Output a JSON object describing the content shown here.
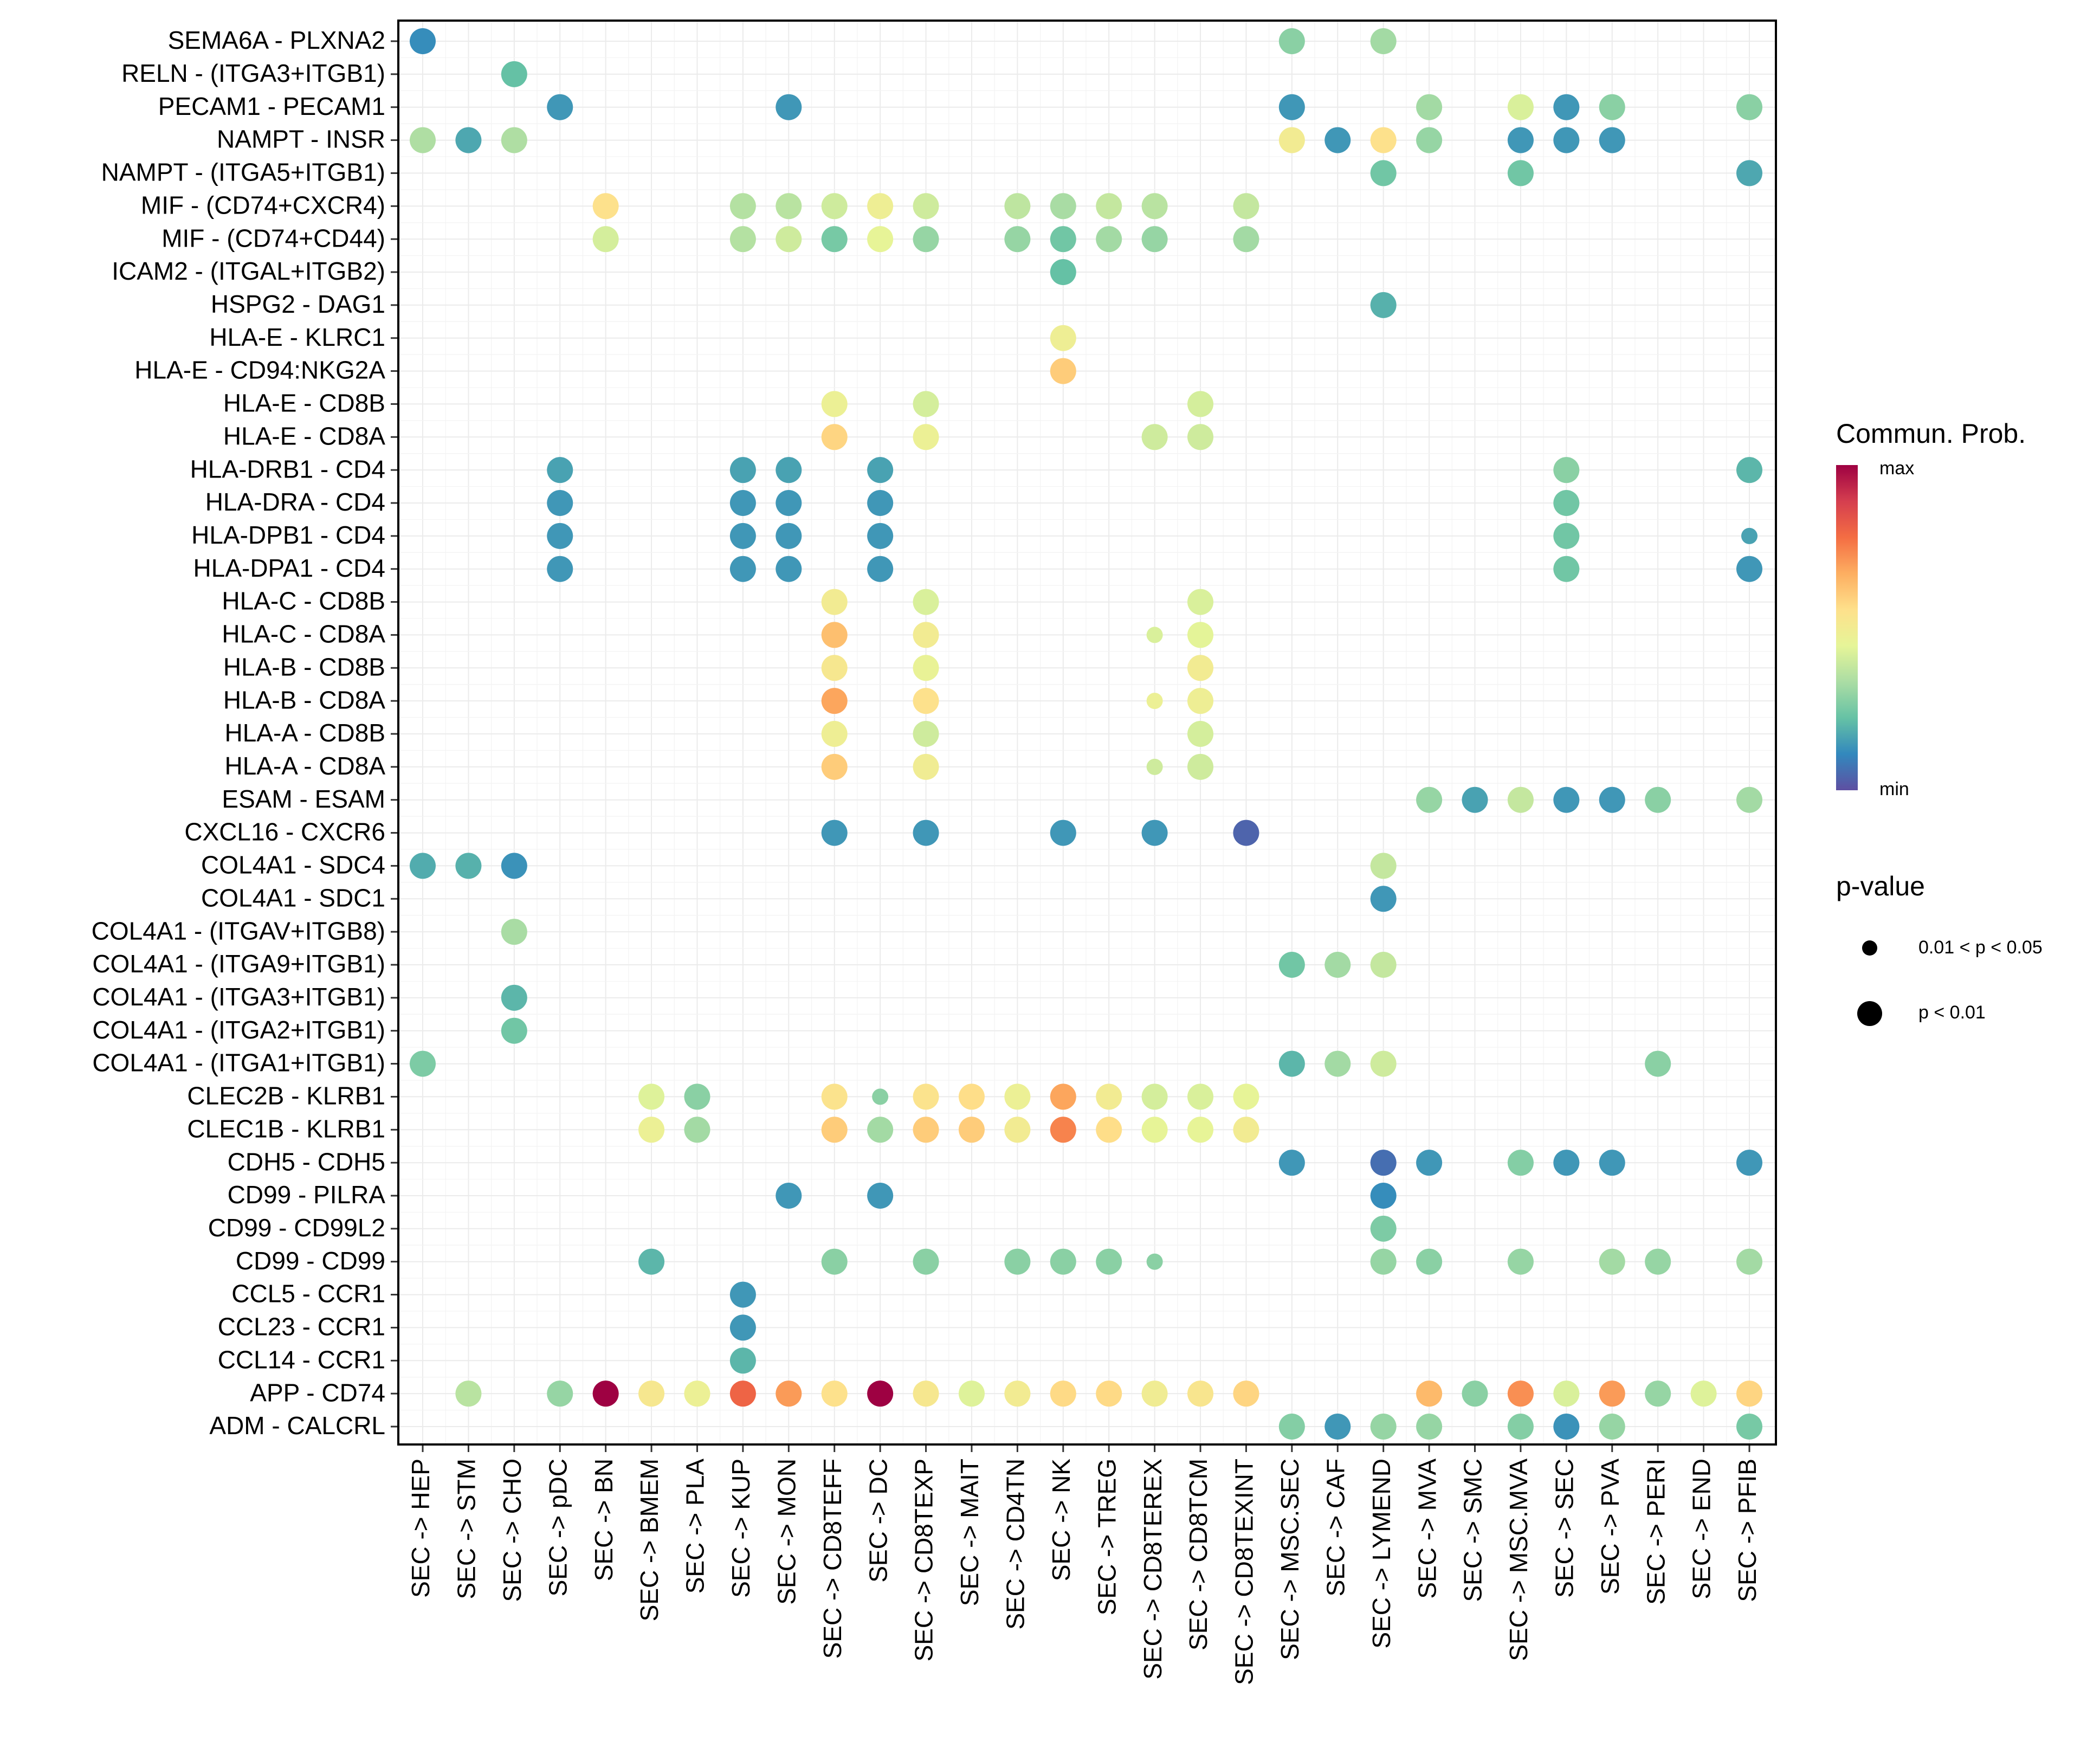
{
  "chart_data": {
    "type": "scatter",
    "subtype": "dot-matrix",
    "title": "",
    "xlabel": "",
    "ylabel": "",
    "grid": true,
    "x_categories": [
      "SEC -> HEP",
      "SEC -> STM",
      "SEC -> CHO",
      "SEC -> pDC",
      "SEC -> BN",
      "SEC -> BMEM",
      "SEC -> PLA",
      "SEC -> KUP",
      "SEC -> MON",
      "SEC -> CD8TEFF",
      "SEC -> DC",
      "SEC -> CD8TEXP",
      "SEC -> MAIT",
      "SEC -> CD4TN",
      "SEC -> NK",
      "SEC -> TREG",
      "SEC -> CD8TEREX",
      "SEC -> CD8TCM",
      "SEC -> CD8TEXINT",
      "SEC -> MSC.SEC",
      "SEC -> CAF",
      "SEC -> LYMEND",
      "SEC -> MVA",
      "SEC -> SMC",
      "SEC -> MSC.MVA",
      "SEC -> SEC",
      "SEC -> PVA",
      "SEC -> PERI",
      "SEC -> END",
      "SEC -> PFIB"
    ],
    "y_categories": [
      "SEMA6A - PLXNA2",
      "RELN - (ITGA3+ITGB1)",
      "PECAM1 - PECAM1",
      "NAMPT - INSR",
      "NAMPT - (ITGA5+ITGB1)",
      "MIF - (CD74+CXCR4)",
      "MIF - (CD74+CD44)",
      "ICAM2 - (ITGAL+ITGB2)",
      "HSPG2 - DAG1",
      "HLA-E - KLRC1",
      "HLA-E - CD94:NKG2A",
      "HLA-E - CD8B",
      "HLA-E - CD8A",
      "HLA-DRB1 - CD4",
      "HLA-DRA - CD4",
      "HLA-DPB1 - CD4",
      "HLA-DPA1 - CD4",
      "HLA-C - CD8B",
      "HLA-C - CD8A",
      "HLA-B - CD8B",
      "HLA-B - CD8A",
      "HLA-A - CD8B",
      "HLA-A - CD8A",
      "ESAM - ESAM",
      "CXCL16 - CXCR6",
      "COL4A1 - SDC4",
      "COL4A1 - SDC1",
      "COL4A1 - (ITGAV+ITGB8)",
      "COL4A1 - (ITGA9+ITGB1)",
      "COL4A1 - (ITGA3+ITGB1)",
      "COL4A1 - (ITGA2+ITGB1)",
      "COL4A1 - (ITGA1+ITGB1)",
      "CLEC2B - KLRB1",
      "CLEC1B - KLRB1",
      "CDH5 - CDH5",
      "CD99 - PILRA",
      "CD99 - CD99L2",
      "CD99 - CD99",
      "CCL5 - CCR1",
      "CCL23 - CCR1",
      "CCL14 - CCR1",
      "APP - CD74",
      "ADM - CALCRL"
    ],
    "value_note": "points: [x_index, y_index, commun_prob_scaled (0=min,1=max), pvalue_class ('p<0.01' or '0.01<p<0.05')]",
    "points": [
      [
        0,
        0,
        0.12,
        "p<0.01"
      ],
      [
        19,
        0,
        0.28,
        "p<0.01"
      ],
      [
        21,
        0,
        0.32,
        "p<0.01"
      ],
      [
        2,
        1,
        0.22,
        "p<0.01"
      ],
      [
        3,
        2,
        0.14,
        "p<0.01"
      ],
      [
        8,
        2,
        0.14,
        "p<0.01"
      ],
      [
        19,
        2,
        0.14,
        "p<0.01"
      ],
      [
        22,
        2,
        0.32,
        "p<0.01"
      ],
      [
        24,
        2,
        0.42,
        "p<0.01"
      ],
      [
        25,
        2,
        0.14,
        "p<0.01"
      ],
      [
        26,
        2,
        0.28,
        "p<0.01"
      ],
      [
        29,
        2,
        0.28,
        "p<0.01"
      ],
      [
        0,
        3,
        0.34,
        "p<0.01"
      ],
      [
        1,
        3,
        0.17,
        "p<0.01"
      ],
      [
        2,
        3,
        0.34,
        "p<0.01"
      ],
      [
        19,
        3,
        0.5,
        "p<0.01"
      ],
      [
        20,
        3,
        0.14,
        "p<0.01"
      ],
      [
        21,
        3,
        0.55,
        "p<0.01"
      ],
      [
        22,
        3,
        0.3,
        "p<0.01"
      ],
      [
        24,
        3,
        0.14,
        "p<0.01"
      ],
      [
        25,
        3,
        0.14,
        "p<0.01"
      ],
      [
        26,
        3,
        0.14,
        "p<0.01"
      ],
      [
        21,
        4,
        0.24,
        "p<0.01"
      ],
      [
        24,
        4,
        0.24,
        "p<0.01"
      ],
      [
        29,
        4,
        0.17,
        "p<0.01"
      ],
      [
        4,
        5,
        0.55,
        "p<0.01"
      ],
      [
        7,
        5,
        0.35,
        "p<0.01"
      ],
      [
        8,
        5,
        0.36,
        "p<0.01"
      ],
      [
        9,
        5,
        0.4,
        "p<0.01"
      ],
      [
        10,
        5,
        0.48,
        "p<0.01"
      ],
      [
        11,
        5,
        0.4,
        "p<0.01"
      ],
      [
        13,
        5,
        0.37,
        "p<0.01"
      ],
      [
        14,
        5,
        0.33,
        "p<0.01"
      ],
      [
        15,
        5,
        0.38,
        "p<0.01"
      ],
      [
        16,
        5,
        0.36,
        "p<0.01"
      ],
      [
        18,
        5,
        0.38,
        "p<0.01"
      ],
      [
        4,
        6,
        0.41,
        "p<0.01"
      ],
      [
        7,
        6,
        0.35,
        "p<0.01"
      ],
      [
        8,
        6,
        0.4,
        "p<0.01"
      ],
      [
        9,
        6,
        0.25,
        "p<0.01"
      ],
      [
        10,
        6,
        0.45,
        "p<0.01"
      ],
      [
        11,
        6,
        0.3,
        "p<0.01"
      ],
      [
        13,
        6,
        0.3,
        "p<0.01"
      ],
      [
        14,
        6,
        0.24,
        "p<0.01"
      ],
      [
        15,
        6,
        0.32,
        "p<0.01"
      ],
      [
        16,
        6,
        0.3,
        "p<0.01"
      ],
      [
        18,
        6,
        0.32,
        "p<0.01"
      ],
      [
        14,
        7,
        0.22,
        "p<0.01"
      ],
      [
        21,
        8,
        0.19,
        "p<0.01"
      ],
      [
        14,
        9,
        0.48,
        "p<0.01"
      ],
      [
        14,
        10,
        0.6,
        "p<0.01"
      ],
      [
        9,
        11,
        0.47,
        "p<0.01"
      ],
      [
        11,
        11,
        0.41,
        "p<0.01"
      ],
      [
        17,
        11,
        0.41,
        "p<0.01"
      ],
      [
        9,
        12,
        0.58,
        "p<0.01"
      ],
      [
        11,
        12,
        0.47,
        "p<0.01"
      ],
      [
        16,
        12,
        0.4,
        "p<0.01"
      ],
      [
        17,
        12,
        0.4,
        "p<0.01"
      ],
      [
        3,
        13,
        0.16,
        "p<0.01"
      ],
      [
        7,
        13,
        0.16,
        "p<0.01"
      ],
      [
        8,
        13,
        0.16,
        "p<0.01"
      ],
      [
        10,
        13,
        0.16,
        "p<0.01"
      ],
      [
        25,
        13,
        0.28,
        "p<0.01"
      ],
      [
        29,
        13,
        0.2,
        "p<0.01"
      ],
      [
        3,
        14,
        0.14,
        "p<0.01"
      ],
      [
        7,
        14,
        0.14,
        "p<0.01"
      ],
      [
        8,
        14,
        0.14,
        "p<0.01"
      ],
      [
        10,
        14,
        0.14,
        "p<0.01"
      ],
      [
        25,
        14,
        0.24,
        "p<0.01"
      ],
      [
        3,
        15,
        0.14,
        "p<0.01"
      ],
      [
        7,
        15,
        0.14,
        "p<0.01"
      ],
      [
        8,
        15,
        0.14,
        "p<0.01"
      ],
      [
        10,
        15,
        0.14,
        "p<0.01"
      ],
      [
        25,
        15,
        0.24,
        "p<0.01"
      ],
      [
        29,
        15,
        0.16,
        "0.01<p<0.05"
      ],
      [
        3,
        16,
        0.14,
        "p<0.01"
      ],
      [
        7,
        16,
        0.14,
        "p<0.01"
      ],
      [
        8,
        16,
        0.14,
        "p<0.01"
      ],
      [
        10,
        16,
        0.14,
        "p<0.01"
      ],
      [
        25,
        16,
        0.24,
        "p<0.01"
      ],
      [
        29,
        16,
        0.14,
        "p<0.01"
      ],
      [
        9,
        17,
        0.5,
        "p<0.01"
      ],
      [
        11,
        17,
        0.42,
        "p<0.01"
      ],
      [
        17,
        17,
        0.42,
        "p<0.01"
      ],
      [
        9,
        18,
        0.63,
        "p<0.01"
      ],
      [
        11,
        18,
        0.5,
        "p<0.01"
      ],
      [
        16,
        18,
        0.42,
        "0.01<p<0.05"
      ],
      [
        17,
        18,
        0.44,
        "p<0.01"
      ],
      [
        9,
        19,
        0.52,
        "p<0.01"
      ],
      [
        11,
        19,
        0.46,
        "p<0.01"
      ],
      [
        17,
        19,
        0.5,
        "p<0.01"
      ],
      [
        9,
        20,
        0.68,
        "p<0.01"
      ],
      [
        11,
        20,
        0.55,
        "p<0.01"
      ],
      [
        16,
        20,
        0.47,
        "0.01<p<0.05"
      ],
      [
        17,
        20,
        0.48,
        "p<0.01"
      ],
      [
        9,
        21,
        0.48,
        "p<0.01"
      ],
      [
        11,
        21,
        0.4,
        "p<0.01"
      ],
      [
        17,
        21,
        0.41,
        "p<0.01"
      ],
      [
        9,
        22,
        0.6,
        "p<0.01"
      ],
      [
        11,
        22,
        0.49,
        "p<0.01"
      ],
      [
        16,
        22,
        0.4,
        "0.01<p<0.05"
      ],
      [
        17,
        22,
        0.4,
        "p<0.01"
      ],
      [
        22,
        23,
        0.3,
        "p<0.01"
      ],
      [
        23,
        23,
        0.16,
        "p<0.01"
      ],
      [
        24,
        23,
        0.38,
        "p<0.01"
      ],
      [
        25,
        23,
        0.14,
        "p<0.01"
      ],
      [
        26,
        23,
        0.14,
        "p<0.01"
      ],
      [
        27,
        23,
        0.28,
        "p<0.01"
      ],
      [
        29,
        23,
        0.32,
        "p<0.01"
      ],
      [
        9,
        24,
        0.14,
        "p<0.01"
      ],
      [
        11,
        24,
        0.14,
        "p<0.01"
      ],
      [
        14,
        24,
        0.14,
        "p<0.01"
      ],
      [
        16,
        24,
        0.14,
        "p<0.01"
      ],
      [
        18,
        24,
        0.04,
        "p<0.01"
      ],
      [
        0,
        25,
        0.18,
        "p<0.01"
      ],
      [
        1,
        25,
        0.19,
        "p<0.01"
      ],
      [
        2,
        25,
        0.13,
        "p<0.01"
      ],
      [
        21,
        25,
        0.38,
        "p<0.01"
      ],
      [
        21,
        26,
        0.14,
        "p<0.01"
      ],
      [
        2,
        27,
        0.33,
        "p<0.01"
      ],
      [
        19,
        28,
        0.24,
        "p<0.01"
      ],
      [
        20,
        28,
        0.32,
        "p<0.01"
      ],
      [
        21,
        28,
        0.38,
        "p<0.01"
      ],
      [
        2,
        29,
        0.2,
        "p<0.01"
      ],
      [
        2,
        30,
        0.24,
        "p<0.01"
      ],
      [
        0,
        31,
        0.26,
        "p<0.01"
      ],
      [
        19,
        31,
        0.2,
        "p<0.01"
      ],
      [
        20,
        31,
        0.32,
        "p<0.01"
      ],
      [
        21,
        31,
        0.4,
        "p<0.01"
      ],
      [
        27,
        31,
        0.28,
        "p<0.01"
      ],
      [
        5,
        32,
        0.43,
        "p<0.01"
      ],
      [
        6,
        32,
        0.28,
        "p<0.01"
      ],
      [
        9,
        32,
        0.54,
        "p<0.01"
      ],
      [
        10,
        32,
        0.28,
        "0.01<p<0.05"
      ],
      [
        11,
        32,
        0.54,
        "p<0.01"
      ],
      [
        12,
        32,
        0.56,
        "p<0.01"
      ],
      [
        13,
        32,
        0.47,
        "p<0.01"
      ],
      [
        14,
        32,
        0.68,
        "p<0.01"
      ],
      [
        15,
        32,
        0.5,
        "p<0.01"
      ],
      [
        16,
        32,
        0.41,
        "p<0.01"
      ],
      [
        17,
        32,
        0.42,
        "p<0.01"
      ],
      [
        18,
        32,
        0.45,
        "p<0.01"
      ],
      [
        5,
        33,
        0.47,
        "p<0.01"
      ],
      [
        6,
        33,
        0.32,
        "p<0.01"
      ],
      [
        9,
        33,
        0.6,
        "p<0.01"
      ],
      [
        10,
        33,
        0.32,
        "p<0.01"
      ],
      [
        11,
        33,
        0.6,
        "p<0.01"
      ],
      [
        12,
        33,
        0.6,
        "p<0.01"
      ],
      [
        13,
        33,
        0.5,
        "p<0.01"
      ],
      [
        14,
        33,
        0.74,
        "p<0.01"
      ],
      [
        15,
        33,
        0.56,
        "p<0.01"
      ],
      [
        16,
        33,
        0.45,
        "p<0.01"
      ],
      [
        17,
        33,
        0.45,
        "p<0.01"
      ],
      [
        18,
        33,
        0.5,
        "p<0.01"
      ],
      [
        19,
        34,
        0.14,
        "p<0.01"
      ],
      [
        21,
        34,
        0.06,
        "p<0.01"
      ],
      [
        22,
        34,
        0.14,
        "p<0.01"
      ],
      [
        24,
        34,
        0.27,
        "p<0.01"
      ],
      [
        25,
        34,
        0.14,
        "p<0.01"
      ],
      [
        26,
        34,
        0.14,
        "p<0.01"
      ],
      [
        29,
        34,
        0.14,
        "p<0.01"
      ],
      [
        8,
        35,
        0.14,
        "p<0.01"
      ],
      [
        10,
        35,
        0.14,
        "p<0.01"
      ],
      [
        21,
        35,
        0.12,
        "p<0.01"
      ],
      [
        21,
        36,
        0.26,
        "p<0.01"
      ],
      [
        5,
        37,
        0.2,
        "p<0.01"
      ],
      [
        9,
        37,
        0.28,
        "p<0.01"
      ],
      [
        11,
        37,
        0.28,
        "p<0.01"
      ],
      [
        13,
        37,
        0.28,
        "p<0.01"
      ],
      [
        14,
        37,
        0.28,
        "p<0.01"
      ],
      [
        15,
        37,
        0.28,
        "p<0.01"
      ],
      [
        16,
        37,
        0.28,
        "0.01<p<0.05"
      ],
      [
        21,
        37,
        0.3,
        "p<0.01"
      ],
      [
        22,
        37,
        0.28,
        "p<0.01"
      ],
      [
        24,
        37,
        0.3,
        "p<0.01"
      ],
      [
        26,
        37,
        0.32,
        "p<0.01"
      ],
      [
        27,
        37,
        0.3,
        "p<0.01"
      ],
      [
        29,
        37,
        0.32,
        "p<0.01"
      ],
      [
        7,
        38,
        0.14,
        "p<0.01"
      ],
      [
        7,
        39,
        0.14,
        "p<0.01"
      ],
      [
        7,
        40,
        0.2,
        "p<0.01"
      ],
      [
        1,
        41,
        0.36,
        "p<0.01"
      ],
      [
        3,
        41,
        0.3,
        "p<0.01"
      ],
      [
        4,
        41,
        1.0,
        "p<0.01"
      ],
      [
        5,
        41,
        0.52,
        "p<0.01"
      ],
      [
        6,
        41,
        0.47,
        "p<0.01"
      ],
      [
        7,
        41,
        0.8,
        "p<0.01"
      ],
      [
        8,
        41,
        0.7,
        "p<0.01"
      ],
      [
        9,
        41,
        0.55,
        "p<0.01"
      ],
      [
        10,
        41,
        1.0,
        "p<0.01"
      ],
      [
        11,
        41,
        0.52,
        "p<0.01"
      ],
      [
        12,
        41,
        0.43,
        "p<0.01"
      ],
      [
        13,
        41,
        0.5,
        "p<0.01"
      ],
      [
        14,
        41,
        0.57,
        "p<0.01"
      ],
      [
        15,
        41,
        0.57,
        "p<0.01"
      ],
      [
        16,
        41,
        0.49,
        "p<0.01"
      ],
      [
        17,
        41,
        0.53,
        "p<0.01"
      ],
      [
        18,
        41,
        0.58,
        "p<0.01"
      ],
      [
        22,
        41,
        0.64,
        "p<0.01"
      ],
      [
        23,
        41,
        0.28,
        "p<0.01"
      ],
      [
        24,
        41,
        0.72,
        "p<0.01"
      ],
      [
        25,
        41,
        0.42,
        "p<0.01"
      ],
      [
        26,
        41,
        0.7,
        "p<0.01"
      ],
      [
        27,
        41,
        0.3,
        "p<0.01"
      ],
      [
        28,
        41,
        0.43,
        "p<0.01"
      ],
      [
        29,
        41,
        0.58,
        "p<0.01"
      ],
      [
        19,
        42,
        0.27,
        "p<0.01"
      ],
      [
        20,
        42,
        0.14,
        "p<0.01"
      ],
      [
        21,
        42,
        0.3,
        "p<0.01"
      ],
      [
        22,
        42,
        0.3,
        "p<0.01"
      ],
      [
        24,
        42,
        0.27,
        "p<0.01"
      ],
      [
        25,
        42,
        0.13,
        "p<0.01"
      ],
      [
        26,
        42,
        0.3,
        "p<0.01"
      ],
      [
        29,
        42,
        0.25,
        "p<0.01"
      ]
    ],
    "color_scale": {
      "name": "Spectral (reversed)",
      "stops": [
        "#5E4FA2",
        "#3288BD",
        "#66C2A5",
        "#ABDDA4",
        "#E6F598",
        "#FEE08B",
        "#FDAE61",
        "#F46D43",
        "#D53E4F",
        "#9E0142"
      ]
    },
    "legend": {
      "color_title": "Commun. Prob.",
      "color_max_label": "max",
      "color_min_label": "min",
      "size_title": "p-value",
      "size_items": [
        "0.01 < p < 0.05",
        "p < 0.01"
      ],
      "position": "right"
    }
  }
}
